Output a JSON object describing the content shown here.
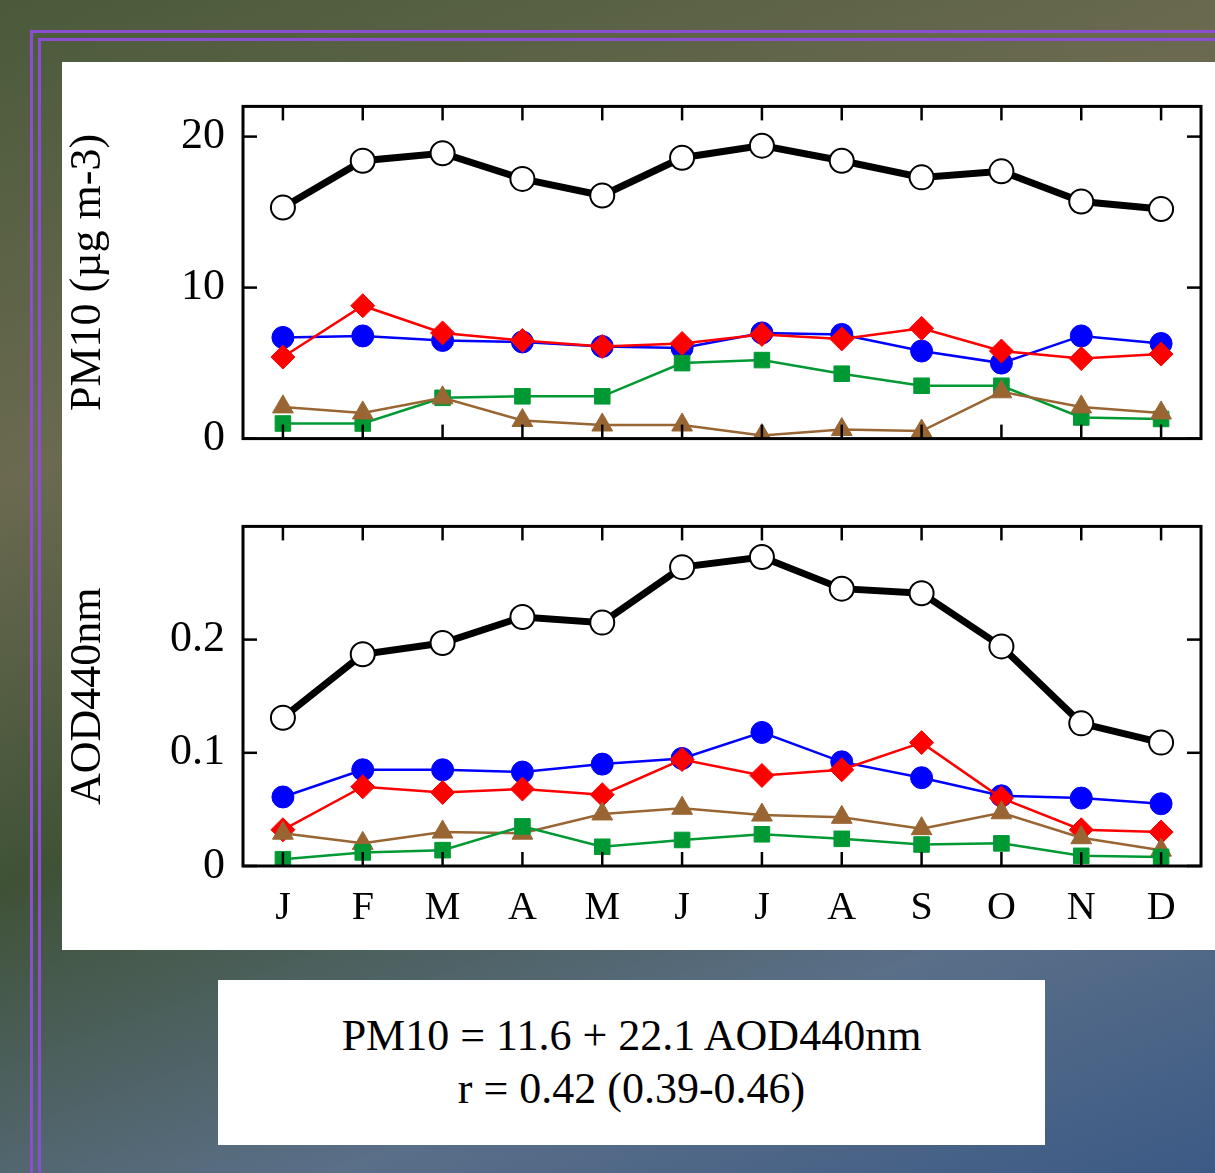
{
  "chart_data": [
    {
      "type": "line",
      "y_label": "PM10 (µg m-3)",
      "categories": [
        "J",
        "F",
        "M",
        "A",
        "M",
        "J",
        "J",
        "A",
        "S",
        "O",
        "N",
        "D"
      ],
      "ylim": [
        0,
        22
      ],
      "yticks": [
        0,
        10,
        20
      ],
      "tick_labels": "y",
      "grid": false,
      "series": [
        {
          "color": "#000000",
          "marker": "open_circle",
          "values": [
            15.3,
            18.4,
            18.9,
            17.2,
            16.1,
            18.6,
            19.4,
            18.4,
            17.3,
            17.7,
            15.7,
            15.2
          ]
        },
        {
          "color": "#0000ff",
          "marker": "circle",
          "values": [
            6.7,
            6.8,
            6.5,
            6.4,
            6.1,
            6.0,
            7.0,
            6.9,
            5.8,
            5.0,
            6.8,
            6.3
          ]
        },
        {
          "color": "#ff0000",
          "marker": "diamond",
          "values": [
            5.4,
            8.8,
            7.0,
            6.5,
            6.1,
            6.3,
            6.9,
            6.6,
            7.3,
            5.8,
            5.3,
            5.6
          ]
        },
        {
          "color": "#009933",
          "marker": "square",
          "values": [
            1.0,
            1.0,
            2.7,
            2.8,
            2.8,
            5.0,
            5.2,
            4.3,
            3.5,
            3.5,
            1.4,
            1.3
          ]
        },
        {
          "color": "#996633",
          "marker": "triangle",
          "values": [
            2.1,
            1.7,
            2.7,
            1.2,
            0.9,
            0.9,
            0.2,
            0.6,
            0.5,
            3.1,
            2.1,
            1.7
          ]
        }
      ]
    },
    {
      "type": "line",
      "y_label": "AOD440nm",
      "categories": [
        "J",
        "F",
        "M",
        "A",
        "M",
        "J",
        "J",
        "A",
        "S",
        "O",
        "N",
        "D"
      ],
      "ylim": [
        0,
        0.3
      ],
      "yticks": [
        0,
        0.1,
        0.2
      ],
      "grid": false,
      "series": [
        {
          "color": "#000000",
          "marker": "open_circle",
          "values": [
            0.131,
            0.187,
            0.197,
            0.22,
            0.215,
            0.264,
            0.273,
            0.245,
            0.241,
            0.194,
            0.126,
            0.109
          ]
        },
        {
          "color": "#0000ff",
          "marker": "circle",
          "values": [
            0.061,
            0.085,
            0.085,
            0.083,
            0.09,
            0.095,
            0.118,
            0.092,
            0.078,
            0.062,
            0.06,
            0.055
          ]
        },
        {
          "color": "#ff0000",
          "marker": "diamond",
          "values": [
            0.032,
            0.07,
            0.065,
            0.068,
            0.063,
            0.094,
            0.08,
            0.085,
            0.109,
            0.06,
            0.032,
            0.03
          ]
        },
        {
          "color": "#996633",
          "marker": "triangle",
          "values": [
            0.029,
            0.02,
            0.03,
            0.029,
            0.046,
            0.051,
            0.045,
            0.043,
            0.033,
            0.047,
            0.025,
            0.014
          ]
        },
        {
          "color": "#009933",
          "marker": "square",
          "values": [
            0.006,
            0.012,
            0.014,
            0.035,
            0.017,
            0.023,
            0.028,
            0.024,
            0.019,
            0.02,
            0.009,
            0.008
          ]
        }
      ]
    }
  ],
  "annotation": {
    "lines": [
      "PM10 = 11.6 + 22.1 AOD440nm",
      "r = 0.42 (0.39-0.46)"
    ]
  }
}
